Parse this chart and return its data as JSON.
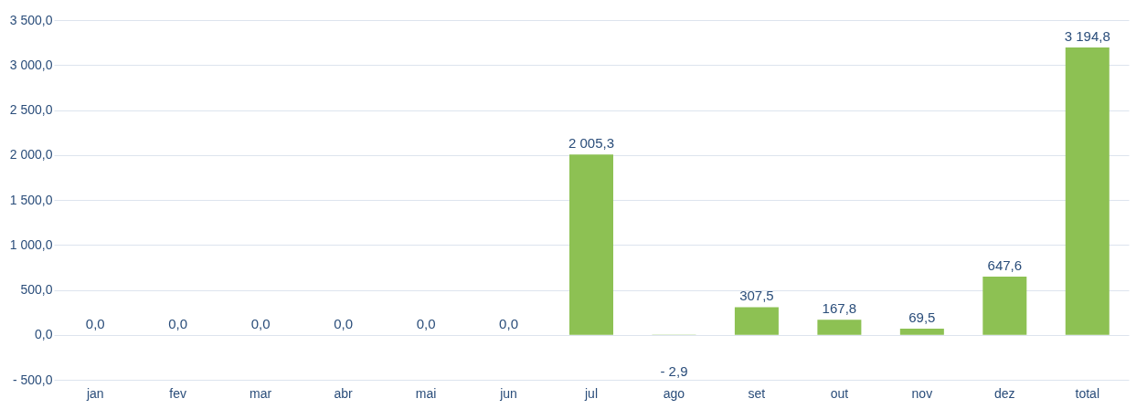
{
  "chart_data": {
    "type": "bar",
    "categories": [
      "jan",
      "fev",
      "mar",
      "abr",
      "mai",
      "jun",
      "jul",
      "ago",
      "set",
      "out",
      "nov",
      "dez",
      "total"
    ],
    "values": [
      0.0,
      0.0,
      0.0,
      0.0,
      0.0,
      0.0,
      2005.3,
      -2.9,
      307.5,
      167.8,
      69.5,
      647.6,
      3194.8
    ],
    "value_labels": [
      "0,0",
      "0,0",
      "0,0",
      "0,0",
      "0,0",
      "0,0",
      "2 005,3",
      "- 2,9",
      "307,5",
      "167,8",
      "69,5",
      "647,6",
      "3 194,8"
    ],
    "color": "#8dc153",
    "ylim": [
      -500,
      3500
    ],
    "yticks": [
      {
        "value": -500,
        "label": "- 500,0"
      },
      {
        "value": 0,
        "label": "0,0"
      },
      {
        "value": 500,
        "label": "500,0"
      },
      {
        "value": 1000,
        "label": "1 000,0"
      },
      {
        "value": 1500,
        "label": "1 500,0"
      },
      {
        "value": 2000,
        "label": "2 000,0"
      },
      {
        "value": 2500,
        "label": "2 500,0"
      },
      {
        "value": 3000,
        "label": "3 000,0"
      },
      {
        "value": 3500,
        "label": "3 500,0"
      }
    ],
    "grid": "y"
  }
}
